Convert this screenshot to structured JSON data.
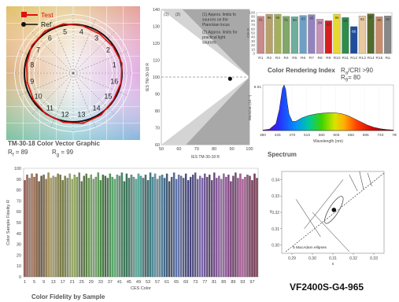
{
  "model": "VF2400S-G4-965",
  "colors": {
    "test": "#e01010",
    "ref": "#111111",
    "grid": "#dddddd",
    "band_light": "#d4d4d4",
    "band_dark": "#a8a8a8"
  },
  "vector_graphic": {
    "title": "TM-30-18 Color Vector Graphic",
    "rf_label": "R",
    "rf_sub": "f",
    "rf_value": "= 89",
    "rg_label": "R",
    "rg_sub": "g",
    "rg_value": "= 99",
    "legend_test": "Test",
    "legend_ref": "Ref",
    "bin_labels": [
      "1",
      "2",
      "3",
      "4",
      "5",
      "6",
      "7",
      "8",
      "9",
      "10",
      "11",
      "12",
      "13",
      "14",
      "15",
      "16"
    ],
    "hue_radius_ratio": [
      1.02,
      0.98,
      0.97,
      0.99,
      1.03,
      1.04,
      1.02,
      0.97,
      0.96,
      0.98,
      1.01,
      1.03,
      1.05,
      1.03,
      0.99,
      1.0
    ]
  },
  "ies_chart": {
    "chart_data": {
      "type": "scatter",
      "xlabel": "IES TM-30-18 R",
      "ylabel": "IES TM-30-18 R",
      "xticks": [
        "50",
        "60",
        "70",
        "80",
        "90",
        "100"
      ],
      "yticks": [
        "60",
        "70",
        "80",
        "90",
        "100",
        "110",
        "120",
        "130",
        "140"
      ],
      "xlim": [
        50,
        100
      ],
      "ylim": [
        60,
        140
      ],
      "point": {
        "x": 89,
        "y": 99
      },
      "legend": [
        "(1) Approx. limits for sources on the Planckian locus",
        "(2) Approx. limits for practical light sources"
      ],
      "band_labels": [
        "(1)",
        "(2)"
      ]
    }
  },
  "cri_chart": {
    "title": "Color Rendering Index",
    "note_ra": "R",
    "note_ra_sub": "a",
    "note_ra_value": "/CRI >90",
    "note_r9": "R",
    "note_r9_sub": "9",
    "note_r9_value": "= 80",
    "chart_data": {
      "type": "bar",
      "categories": [
        "R1",
        "R2",
        "R3",
        "R4",
        "R5",
        "R6",
        "R7",
        "R8",
        "R9",
        "R10",
        "R11",
        "R12",
        "R13",
        "R14",
        "R15",
        "Ra"
      ],
      "values": [
        91,
        96,
        96,
        91,
        90,
        93,
        95,
        84,
        80,
        96,
        88,
        66,
        92,
        97,
        90,
        92
      ],
      "bar_colors": [
        "#c98a8a",
        "#b7a06c",
        "#a5b05a",
        "#80a868",
        "#6fae9c",
        "#6f9fc4",
        "#9283c0",
        "#c990b8",
        "#d81e1e",
        "#e8d832",
        "#2f8c4c",
        "#204c9c",
        "#e8c8a0",
        "#546a2c",
        "#c88c6c",
        "#888888"
      ],
      "ylabel": "CRI R",
      "ylim": [
        0,
        100
      ],
      "yticks": [
        "0",
        "10",
        "20",
        "30",
        "40",
        "50",
        "60",
        "70",
        "80",
        "90",
        "100"
      ],
      "labels": [
        "91",
        "96",
        "96",
        "91",
        "90",
        "93",
        "95",
        "84",
        "80",
        "96",
        "88",
        "66",
        "92",
        "97",
        "90",
        "92"
      ]
    }
  },
  "spectrum": {
    "title": "Spectrum",
    "chart_data": {
      "type": "area",
      "xlabel": "Wavelength (nm)",
      "ylabel": "Watts/nm (10⁻⁴)",
      "xlim": [
        380,
        780
      ],
      "xticks": [
        "380",
        "425",
        "470",
        "515",
        "560",
        "605",
        "650",
        "695",
        "740",
        "785"
      ],
      "yticks": [
        "9.91"
      ],
      "x": [
        380,
        400,
        420,
        430,
        440,
        445,
        450,
        455,
        460,
        470,
        480,
        490,
        500,
        520,
        540,
        560,
        580,
        600,
        620,
        640,
        660,
        680,
        700,
        720,
        740,
        760,
        780
      ],
      "values": [
        0.01,
        0.03,
        0.15,
        0.45,
        0.92,
        1.0,
        0.9,
        0.6,
        0.36,
        0.2,
        0.2,
        0.24,
        0.28,
        0.33,
        0.36,
        0.38,
        0.39,
        0.39,
        0.37,
        0.33,
        0.26,
        0.19,
        0.12,
        0.07,
        0.04,
        0.02,
        0.01
      ]
    }
  },
  "fidelity": {
    "title": "Color Fidelity by Sample",
    "chart_data": {
      "type": "bar",
      "xlabel": "CES Color",
      "ylabel": "Color Sample Fidelity  R",
      "ylim": [
        0,
        100
      ],
      "yticks": [
        "0",
        "10",
        "20",
        "30",
        "40",
        "50",
        "60",
        "70",
        "80",
        "90",
        "100"
      ],
      "xticks": [
        "1",
        "5",
        "9",
        "13",
        "17",
        "21",
        "25",
        "29",
        "33",
        "37",
        "41",
        "45",
        "49",
        "53",
        "57",
        "61",
        "65",
        "69",
        "73",
        "77",
        "81",
        "85",
        "89",
        "93",
        "97"
      ],
      "values": [
        89,
        94,
        91,
        95,
        92,
        95,
        88,
        93,
        94,
        90,
        96,
        91,
        93,
        92,
        95,
        94,
        89,
        93,
        91,
        95,
        90,
        94,
        92,
        96,
        88,
        93,
        95,
        91,
        94,
        90,
        92,
        96,
        89,
        94,
        93,
        91,
        95,
        92,
        90,
        94,
        93,
        96,
        88,
        95,
        91,
        94,
        92,
        90,
        95,
        93,
        91,
        94,
        89,
        96,
        92,
        95,
        90,
        93,
        94,
        91,
        95,
        88,
        92,
        96,
        90,
        94,
        93,
        91,
        95,
        89,
        92,
        94,
        96,
        90,
        93,
        91,
        95,
        92,
        94,
        89,
        96,
        91,
        93,
        90,
        95,
        92,
        94,
        88,
        93,
        96,
        91,
        95,
        90,
        92,
        94,
        93,
        89,
        95,
        91
      ]
    }
  },
  "chromaticity": {
    "label": "5 MacAdam ellipses",
    "chart_data": {
      "type": "scatter",
      "xlabel": "x",
      "ylabel": "y",
      "xlim": [
        0.285,
        0.335
      ],
      "ylim": [
        0.295,
        0.345
      ],
      "xticks": [
        "0.29",
        "0.30",
        "0.31",
        "0.32",
        "0.33"
      ],
      "yticks": [
        "0.30",
        "0.31",
        "0.32",
        "0.33",
        "0.34"
      ],
      "point": {
        "x": 0.3105,
        "y": 0.3215
      }
    }
  }
}
